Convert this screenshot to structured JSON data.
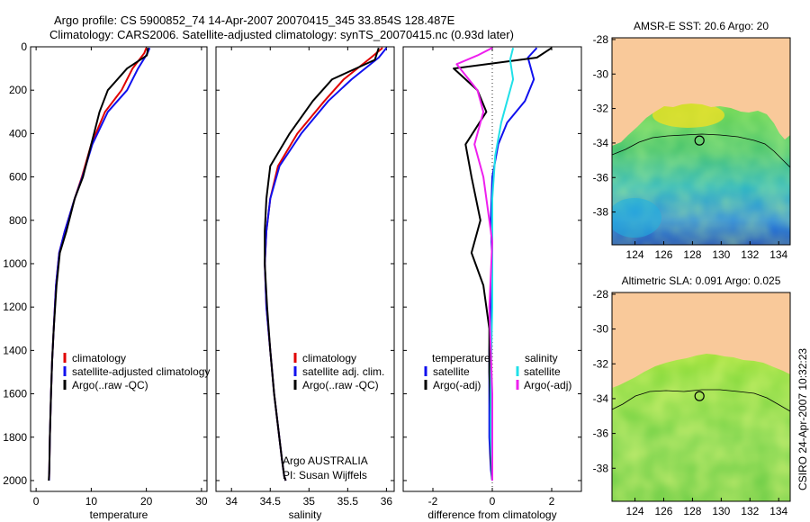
{
  "figure": {
    "title_line1": "Argo profile: CS 5900852_74 14-Apr-2007 20070415_345 33.854S 128.487E",
    "title_line2": "Climatology: CARS2006. Satellite-adjusted climatology: synTS_20070415.nc (0.93d later)",
    "side_stamp": "CSIRO 24-Apr-2007 10:32:23",
    "credit_line1": "Argo AUSTRALIA",
    "credit_line2": "PI: Susan Wijffels"
  },
  "colors": {
    "climatology": "#e00000",
    "satellite": "#1010ee",
    "argo": "#000000",
    "argo_adj_salinity": "#ee20ee",
    "satellite_salinity": "#20e0e8",
    "land": "#f9c99a"
  },
  "chart_data": [
    {
      "type": "line",
      "xlabel": "temperature",
      "ylim": [
        2050,
        0
      ],
      "xlim": [
        -1,
        31
      ],
      "xticks": [
        0,
        10,
        20,
        30
      ],
      "yticks": [
        0,
        200,
        400,
        600,
        800,
        1000,
        1200,
        1400,
        1600,
        1800,
        2000
      ],
      "legend": [
        "climatology",
        "satellite-adjusted climatology",
        "Argo(..raw -QC)"
      ],
      "series": [
        {
          "name": "climatology",
          "color": "#e00000",
          "x": [
            20.0,
            19.6,
            17.5,
            15.5,
            12.5,
            10.0,
            8.3,
            7.0,
            5.2,
            4.2,
            3.6,
            3.2,
            2.9,
            2.7,
            2.5,
            2.4,
            2.35
          ],
          "y": [
            5,
            30,
            100,
            200,
            300,
            450,
            600,
            700,
            850,
            950,
            1100,
            1300,
            1450,
            1600,
            1800,
            1950,
            2000
          ]
        },
        {
          "name": "satellite-adjusted climatology",
          "color": "#1010ee",
          "x": [
            20.6,
            20.2,
            18.5,
            16.5,
            13.0,
            10.2,
            8.4,
            7.0,
            5.2,
            4.2,
            3.6,
            3.2,
            2.9,
            2.7,
            2.5,
            2.4,
            2.35
          ],
          "y": [
            5,
            30,
            100,
            200,
            300,
            450,
            600,
            700,
            850,
            950,
            1100,
            1300,
            1450,
            1600,
            1800,
            1950,
            2000
          ]
        },
        {
          "name": "Argo(..raw -QC)",
          "color": "#000000",
          "x": [
            20.3,
            20.1,
            16.5,
            13.0,
            11.5,
            10.0,
            8.5,
            7.0,
            5.5,
            4.3,
            3.7,
            3.2,
            2.9,
            2.7,
            2.5,
            2.4,
            2.3
          ],
          "y": [
            5,
            40,
            100,
            200,
            300,
            450,
            600,
            700,
            850,
            950,
            1100,
            1300,
            1450,
            1600,
            1800,
            1950,
            2000
          ]
        }
      ]
    },
    {
      "type": "line",
      "xlabel": "salinity",
      "ylim": [
        2050,
        0
      ],
      "xlim": [
        33.8,
        36.1
      ],
      "xticks": [
        34,
        34.5,
        35,
        35.5,
        36
      ],
      "yticks": [
        0,
        200,
        400,
        600,
        800,
        1000,
        1200,
        1400,
        1600,
        1800,
        2000
      ],
      "legend": [
        "climatology",
        "satellite adj. clim.",
        "Argo(..raw -QC)"
      ],
      "series": [
        {
          "name": "climatology",
          "color": "#e00000",
          "x": [
            35.95,
            35.8,
            35.45,
            35.2,
            34.85,
            34.6,
            34.5,
            34.45,
            34.43,
            34.45,
            34.5,
            34.55,
            34.6,
            34.65,
            34.68,
            34.7
          ],
          "y": [
            5,
            50,
            150,
            250,
            400,
            550,
            700,
            850,
            1000,
            1200,
            1400,
            1600,
            1750,
            1900,
            1980,
            2000
          ]
        },
        {
          "name": "satellite adj. clim.",
          "color": "#1010ee",
          "x": [
            36.0,
            35.9,
            35.55,
            35.25,
            34.9,
            34.62,
            34.5,
            34.45,
            34.43,
            34.45,
            34.5,
            34.55,
            34.6,
            34.65,
            34.68,
            34.7
          ],
          "y": [
            5,
            50,
            150,
            250,
            400,
            550,
            700,
            850,
            1000,
            1200,
            1400,
            1600,
            1750,
            1900,
            1980,
            2000
          ]
        },
        {
          "name": "Argo(..raw -QC)",
          "color": "#000000",
          "x": [
            35.9,
            35.85,
            35.3,
            35.05,
            34.75,
            34.5,
            34.45,
            34.43,
            34.43,
            34.46,
            34.5,
            34.55,
            34.6,
            34.65,
            34.68,
            34.7
          ],
          "y": [
            5,
            60,
            150,
            250,
            400,
            550,
            700,
            850,
            1000,
            1200,
            1400,
            1600,
            1750,
            1900,
            1980,
            2000
          ]
        }
      ]
    },
    {
      "type": "line",
      "xlabel": "difference from climatology",
      "ylim": [
        2050,
        0
      ],
      "xlim": [
        -3,
        3
      ],
      "xticks": [
        -2,
        0,
        2
      ],
      "yticks": [
        0,
        200,
        400,
        600,
        800,
        1000,
        1200,
        1400,
        1600,
        1800,
        2000
      ],
      "legend_headers": [
        "temperature",
        "salinity"
      ],
      "legend": [
        "satellite",
        "Argo(-adj)",
        "satellite",
        "Argo(-adj)"
      ],
      "series": [
        {
          "name": "satellite",
          "color": "#1010ee",
          "x": [
            1.5,
            1.2,
            1.4,
            1.1,
            0.5,
            0.2,
            0.0,
            -0.05,
            0.0,
            -0.05,
            -0.1,
            -0.1,
            -0.1,
            -0.05,
            0.0
          ],
          "y": [
            5,
            50,
            150,
            250,
            350,
            450,
            600,
            800,
            1000,
            1200,
            1400,
            1600,
            1800,
            1950,
            2000
          ]
        },
        {
          "name": "Argo(-adj)",
          "color": "#000000",
          "x": [
            2.0,
            1.5,
            -1.3,
            -0.5,
            -0.2,
            -0.9,
            -0.7,
            -0.4,
            -0.7,
            -0.3,
            -0.1,
            -0.1,
            -0.05,
            -0.05,
            0.0
          ],
          "y": [
            5,
            50,
            100,
            200,
            300,
            450,
            600,
            800,
            950,
            1100,
            1300,
            1500,
            1700,
            1900,
            2000
          ]
        },
        {
          "name": "satellite",
          "color": "#20e0e8",
          "x": [
            0.7,
            0.6,
            0.7,
            0.5,
            0.3,
            0.1,
            0.0,
            0.0,
            0.0,
            -0.05,
            -0.05,
            0.0
          ],
          "y": [
            5,
            60,
            150,
            250,
            350,
            500,
            700,
            900,
            1200,
            1500,
            1800,
            2000
          ]
        },
        {
          "name": "Argo(-adj)",
          "color": "#ee20ee",
          "x": [
            0.0,
            -0.5,
            -1.2,
            -0.5,
            -0.3,
            -0.6,
            -0.3,
            0.0,
            -0.1,
            0.0,
            0.0
          ],
          "y": [
            5,
            40,
            80,
            200,
            300,
            450,
            600,
            900,
            1200,
            1600,
            2000
          ]
        }
      ]
    },
    {
      "type": "heatmap",
      "title": "AMSR-E SST: 20.6 Argo: 20",
      "xticks": [
        124,
        126,
        128,
        130,
        132,
        134
      ],
      "yticks": [
        -28,
        -30,
        -32,
        -34,
        -36,
        -38
      ],
      "xlim": [
        122.4,
        134.8
      ],
      "ylim": [
        -39.9,
        -27.9
      ],
      "marker": {
        "lon": 128.487,
        "lat": -33.854
      }
    },
    {
      "type": "heatmap",
      "title": "Altimetric SLA: 0.091 Argo: 0.025",
      "xticks": [
        124,
        126,
        128,
        130,
        132,
        134
      ],
      "yticks": [
        -28,
        -30,
        -32,
        -34,
        -36,
        -38
      ],
      "xlim": [
        122.4,
        134.8
      ],
      "ylim": [
        -39.9,
        -27.9
      ],
      "marker": {
        "lon": 128.487,
        "lat": -33.854
      }
    }
  ]
}
